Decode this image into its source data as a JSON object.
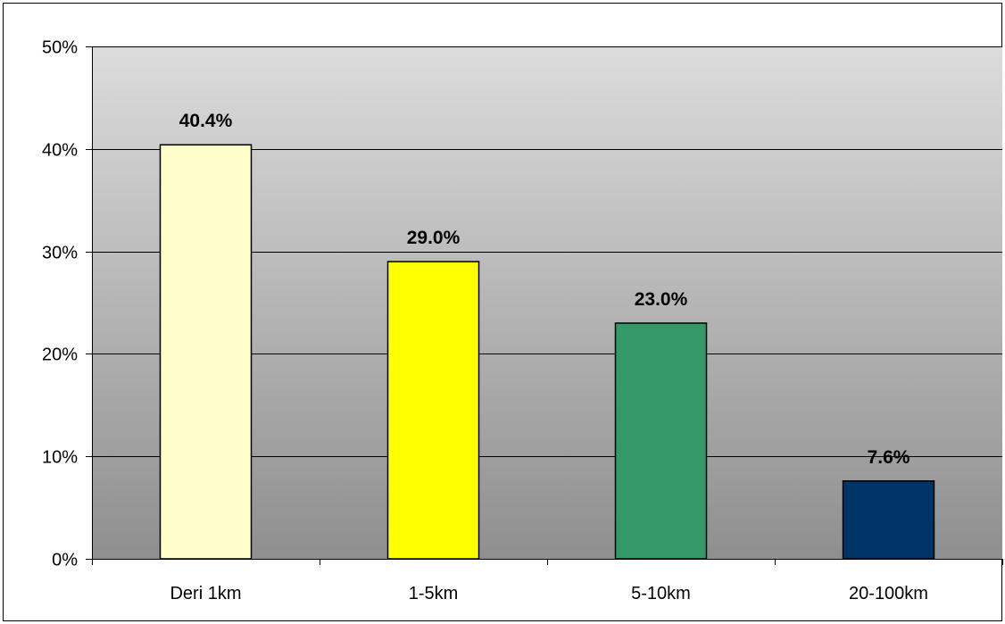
{
  "chart_data": {
    "type": "bar",
    "title": "",
    "xlabel": "",
    "ylabel": "",
    "categories": [
      "Deri 1km",
      "1-5km",
      "5-10km",
      "20-100km"
    ],
    "values": [
      40.4,
      29.0,
      23.0,
      7.6
    ],
    "value_labels": [
      "40.4%",
      "29.0%",
      "23.0%",
      "7.6%"
    ],
    "bar_colors": [
      "#FFFFCC",
      "#FFFF00",
      "#339966",
      "#003366"
    ],
    "ylim": [
      0,
      50
    ],
    "y_ticks": [
      0,
      10,
      20,
      30,
      40,
      50
    ],
    "y_tick_labels": [
      "0%",
      "10%",
      "20%",
      "30%",
      "40%",
      "50%"
    ],
    "grid": true,
    "legend": "none",
    "plot_background": "gradient light gray to dark gray"
  }
}
